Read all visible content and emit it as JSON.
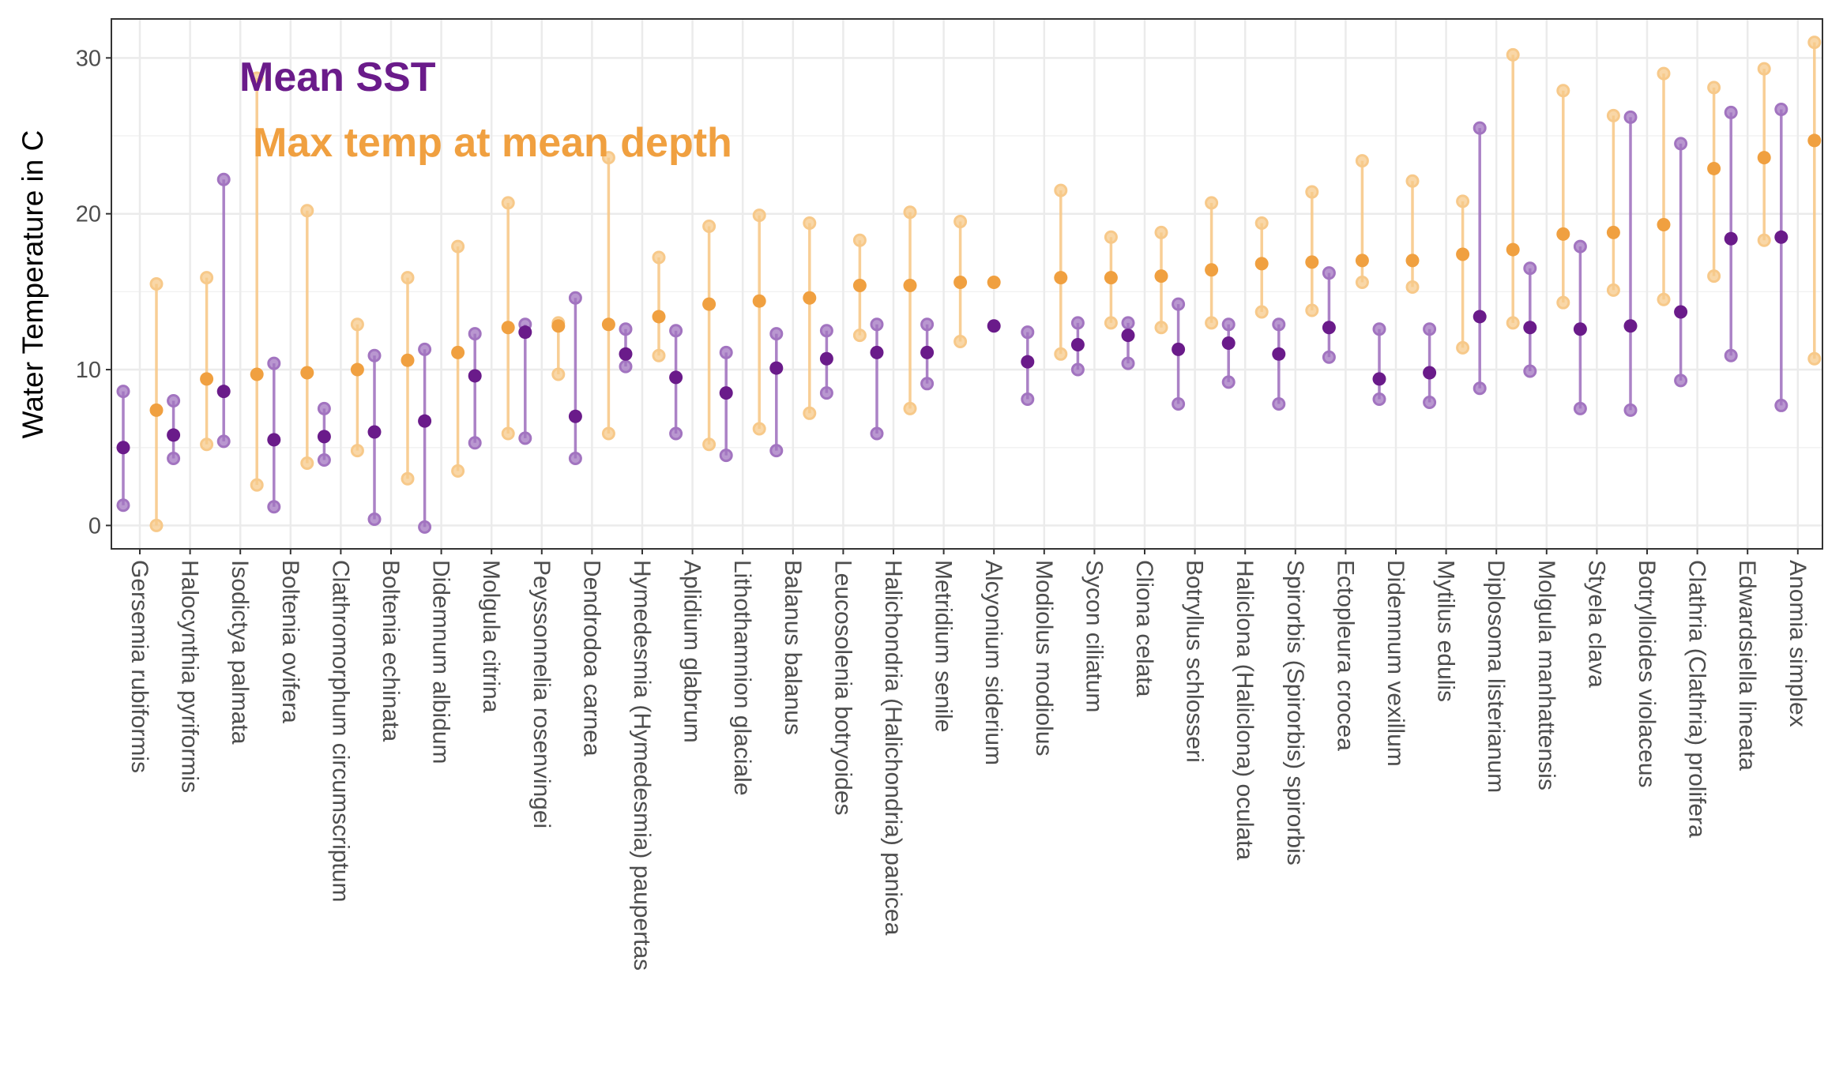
{
  "chart_data": {
    "type": "scatter",
    "ylabel": "Water Temperature in C",
    "ylim": [
      -1.5,
      32.5
    ],
    "yticks": [
      0,
      10,
      20,
      30
    ],
    "grid": true,
    "legend_placement": "top-left",
    "annotations": [
      {
        "text": "Mean SST",
        "color": "#6a1b8a"
      },
      {
        "text": "Max temp at mean depth",
        "color": "#f0a040"
      }
    ],
    "colors": {
      "sst": "#6a1b8a",
      "sst_light": "#a274c0",
      "max": "#f0a040",
      "max_light": "#f7c98a"
    },
    "categories": [
      "Gersemia rubiformis",
      "Halocynthia pyriformis",
      "Isodictya palmata",
      "Boltenia ovifera",
      "Clathromorphum circumscriptum",
      "Boltenia echinata",
      "Didemnum albidum",
      "Molgula citrina",
      "Peyssonnelia rosenvingei",
      "Dendrodoa carnea",
      "Hymedesmia (Hymedesmia) paupertas",
      "Aplidium glabrum",
      "Lithothamnion glaciale",
      "Balanus balanus",
      "Leucosolenia botryoides",
      "Halichondria (Halichondria) panicea",
      "Metridium senile",
      "Alcyonium siderium",
      "Modiolus modiolus",
      "Sycon ciliatum",
      "Cliona celata",
      "Botryllus schlosseri",
      "Haliclona (Haliclona) oculata",
      "Spirorbis (Spirorbis) spirorbis",
      "Ectopleura crocea",
      "Didemnum vexillum",
      "Mytilus edulis",
      "Diplosoma listerianum",
      "Molgula manhattensis",
      "Styela clava",
      "Botrylloides violaceus",
      "Clathria (Clathria) prolifera",
      "Edwardsiella lineata",
      "Anomia simplex"
    ],
    "series": [
      {
        "name": "Mean SST",
        "mean": [
          5.0,
          5.8,
          8.6,
          5.5,
          5.7,
          6.0,
          6.7,
          9.6,
          12.4,
          7.0,
          11.0,
          9.5,
          8.5,
          10.1,
          10.7,
          11.1,
          11.1,
          12.8,
          10.5,
          11.6,
          12.2,
          11.3,
          11.7,
          11.0,
          12.7,
          9.4,
          9.8,
          13.4,
          12.7,
          12.6,
          12.8,
          13.7,
          18.4,
          18.5
        ],
        "min": [
          1.3,
          4.3,
          5.4,
          1.2,
          4.2,
          0.4,
          -0.1,
          5.3,
          5.6,
          4.3,
          10.2,
          5.9,
          4.5,
          4.8,
          8.5,
          5.9,
          9.1,
          null,
          8.1,
          10.0,
          10.4,
          7.8,
          9.2,
          7.8,
          10.8,
          8.1,
          7.9,
          8.8,
          9.9,
          7.5,
          7.4,
          9.3,
          10.9,
          7.7
        ],
        "max": [
          8.6,
          8.0,
          22.2,
          10.4,
          7.5,
          10.9,
          11.3,
          12.3,
          12.9,
          14.6,
          12.6,
          12.5,
          11.1,
          12.3,
          12.5,
          12.9,
          12.9,
          null,
          12.4,
          13.0,
          13.0,
          14.2,
          12.9,
          12.9,
          16.2,
          12.6,
          12.6,
          25.5,
          16.5,
          17.9,
          26.2,
          24.5,
          26.5,
          26.7
        ]
      },
      {
        "name": "Max temp at mean depth",
        "mean": [
          7.4,
          9.4,
          9.7,
          9.8,
          10.0,
          10.6,
          11.1,
          12.7,
          12.8,
          12.9,
          13.4,
          14.2,
          14.4,
          14.6,
          15.4,
          15.4,
          15.6,
          15.6,
          15.9,
          15.9,
          16.0,
          16.4,
          16.8,
          16.9,
          17.0,
          17.0,
          17.4,
          17.7,
          18.7,
          18.8,
          19.3,
          22.9,
          23.6,
          24.7
        ],
        "min": [
          0.0,
          5.2,
          2.6,
          4.0,
          4.8,
          3.0,
          3.5,
          5.9,
          9.7,
          5.9,
          10.9,
          5.2,
          6.2,
          7.2,
          12.2,
          7.5,
          11.8,
          null,
          11.0,
          13.0,
          12.7,
          13.0,
          13.7,
          13.8,
          15.6,
          15.3,
          11.4,
          13.0,
          14.3,
          15.1,
          14.5,
          16.0,
          18.3,
          10.7
        ],
        "max": [
          15.5,
          15.9,
          28.7,
          20.2,
          12.9,
          15.9,
          17.9,
          20.7,
          13.0,
          23.6,
          17.2,
          19.2,
          19.9,
          19.4,
          18.3,
          20.1,
          19.5,
          null,
          21.5,
          18.5,
          18.8,
          20.7,
          19.4,
          21.4,
          23.4,
          22.1,
          20.8,
          30.2,
          27.9,
          26.3,
          29.0,
          28.1,
          29.3,
          31.0
        ]
      }
    ]
  }
}
